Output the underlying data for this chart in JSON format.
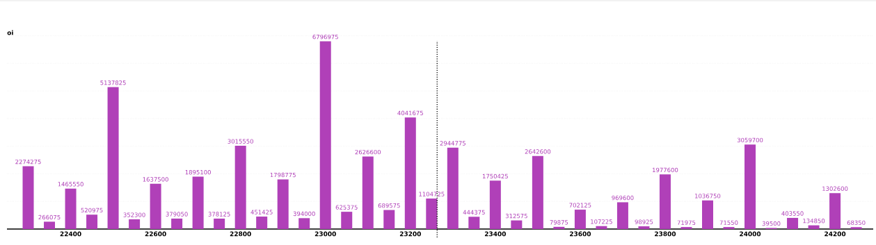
{
  "chart_data": {
    "type": "bar",
    "ylabel": "oi",
    "color": "#b040b8",
    "x": [
      22300,
      22350,
      22400,
      22450,
      22500,
      22550,
      22600,
      22650,
      22700,
      22750,
      22800,
      22850,
      22900,
      22950,
      23000,
      23050,
      23100,
      23150,
      23200,
      23250,
      23300,
      23350,
      23400,
      23450,
      23500,
      23550,
      23600,
      23650,
      23700,
      23750,
      23800,
      23850,
      23900,
      23950,
      24000,
      24050,
      24100,
      24150,
      24200,
      24250
    ],
    "values": [
      2274275,
      266075,
      1465550,
      520975,
      5137825,
      352300,
      1637500,
      379050,
      1895100,
      378125,
      3015550,
      451425,
      1798775,
      394000,
      6796975,
      625375,
      2626600,
      689575,
      4041675,
      1104725,
      2944775,
      444375,
      1750425,
      312575,
      2642600,
      79875,
      702125,
      107225,
      969600,
      98925,
      1977600,
      71975,
      1036750,
      71550,
      3059700,
      39500,
      403550,
      134850,
      1302600,
      68350
    ],
    "data_labels": true,
    "xlim": [
      22250,
      24290
    ],
    "xticks": [
      22400,
      22600,
      22800,
      23000,
      23200,
      23400,
      23600,
      23800,
      24000,
      24200
    ],
    "tick_labels": "x",
    "grid": "y",
    "ref_lines": [
      {
        "axis": "x",
        "value": 23263,
        "line_style": "dotted"
      }
    ]
  }
}
